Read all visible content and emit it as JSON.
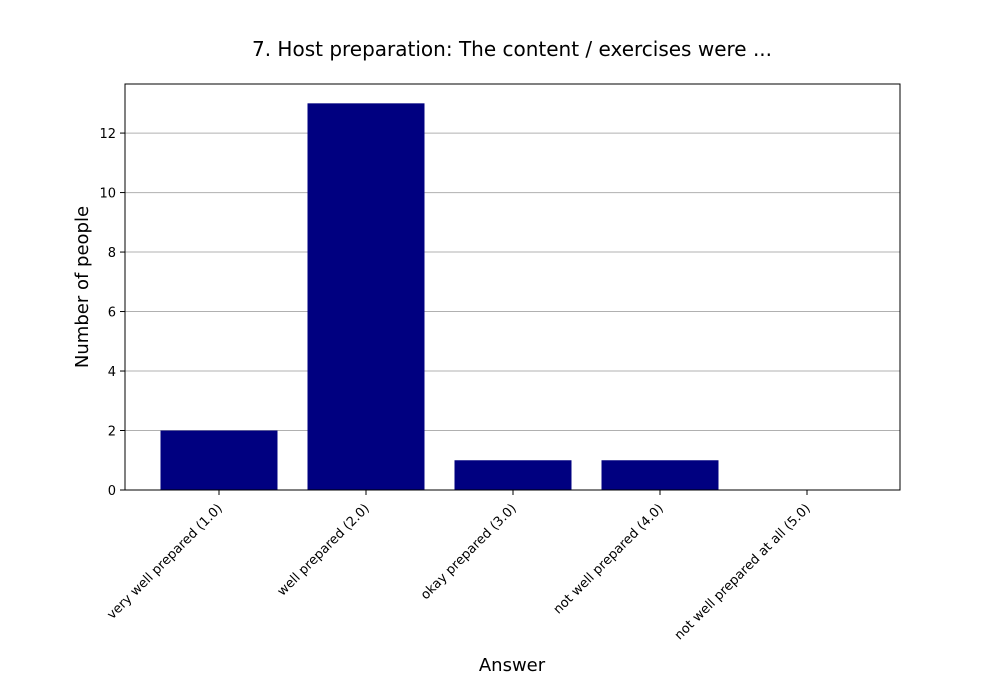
{
  "chart_data": {
    "type": "bar",
    "title": "7. Host preparation: The content / exercises were ...",
    "xlabel": "Answer",
    "ylabel": "Number of people",
    "categories": [
      "very well prepared (1.0)",
      "well prepared (2.0)",
      "okay prepared (3.0)",
      "not well prepared (4.0)",
      "not well prepared at all (5.0)"
    ],
    "values": [
      2,
      13,
      1,
      1,
      0
    ],
    "ylim": [
      0,
      13.65
    ],
    "yticks": [
      0,
      2,
      4,
      6,
      8,
      10,
      12
    ],
    "grid": "horizontal",
    "bar_color": "#000080"
  }
}
